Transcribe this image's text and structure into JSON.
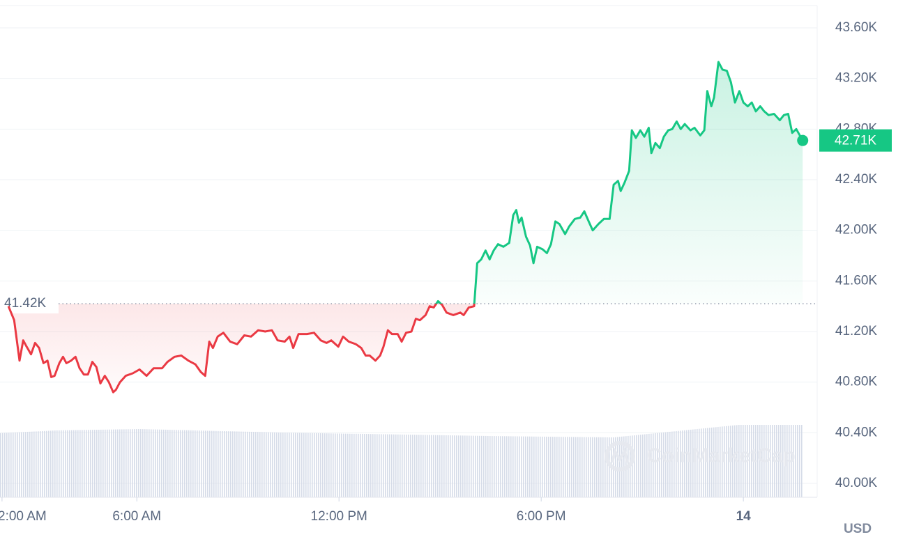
{
  "chart_data": {
    "type": "line",
    "currency": "USD",
    "watermark": "CoinMarketCap",
    "xlim": [
      1.94,
      26.19
    ],
    "xticks": [
      {
        "value": 2,
        "label": "2:00 AM"
      },
      {
        "value": 6,
        "label": "6:00 AM"
      },
      {
        "value": 12,
        "label": "12:00 PM"
      },
      {
        "value": 18,
        "label": "6:00 PM"
      },
      {
        "value": 24,
        "label": "14"
      }
    ],
    "ylim": [
      39890,
      43776
    ],
    "yticks": [
      {
        "value": 40000,
        "label": "40.00K"
      },
      {
        "value": 40400,
        "label": "40.40K"
      },
      {
        "value": 40800,
        "label": "40.80K"
      },
      {
        "value": 41200,
        "label": "41.20K"
      },
      {
        "value": 41600,
        "label": "41.60K"
      },
      {
        "value": 42000,
        "label": "42.00K"
      },
      {
        "value": 42400,
        "label": "42.40K"
      },
      {
        "value": 42800,
        "label": "42.80K"
      },
      {
        "value": 43200,
        "label": "43.20K"
      },
      {
        "value": 43600,
        "label": "43.60K"
      }
    ],
    "grid": true,
    "baseline": {
      "value": 41420,
      "label": "41.42K"
    },
    "price_label": {
      "value": 42710,
      "label": "42.71K"
    },
    "up_color": "#16c784",
    "down_color": "#ea3943",
    "x": [
      2.19,
      2.36,
      2.52,
      2.63,
      2.73,
      2.86,
      2.98,
      3.1,
      3.23,
      3.35,
      3.46,
      3.56,
      3.7,
      3.81,
      3.91,
      4.05,
      4.18,
      4.3,
      4.43,
      4.55,
      4.68,
      4.8,
      4.92,
      5.05,
      5.17,
      5.3,
      5.38,
      5.5,
      5.67,
      5.88,
      6.08,
      6.29,
      6.5,
      6.75,
      6.91,
      7.12,
      7.32,
      7.53,
      7.74,
      7.9,
      8.03,
      8.15,
      8.26,
      8.4,
      8.57,
      8.77,
      8.98,
      9.19,
      9.39,
      9.6,
      9.81,
      10.01,
      10.18,
      10.39,
      10.53,
      10.64,
      10.8,
      11.05,
      11.26,
      11.46,
      11.63,
      11.77,
      11.98,
      12.12,
      12.29,
      12.5,
      12.66,
      12.79,
      12.91,
      13.08,
      13.22,
      13.32,
      13.45,
      13.57,
      13.74,
      13.86,
      13.99,
      14.15,
      14.28,
      14.4,
      14.57,
      14.69,
      14.81,
      14.94,
      15.06,
      15.19,
      15.39,
      15.6,
      15.7,
      15.85,
      16.01,
      16.1,
      16.22,
      16.35,
      16.47,
      16.59,
      16.72,
      16.88,
      17.05,
      17.17,
      17.26,
      17.34,
      17.42,
      17.55,
      17.67,
      17.77,
      17.88,
      18.04,
      18.17,
      18.29,
      18.42,
      18.54,
      18.71,
      18.83,
      19.0,
      19.16,
      19.28,
      19.41,
      19.53,
      19.7,
      19.86,
      20.03,
      20.15,
      20.28,
      20.36,
      20.48,
      20.61,
      20.69,
      20.81,
      20.94,
      21.06,
      21.19,
      21.27,
      21.39,
      21.52,
      21.64,
      21.77,
      21.89,
      22.02,
      22.14,
      22.26,
      22.43,
      22.55,
      22.72,
      22.84,
      22.93,
      23.05,
      23.13,
      23.26,
      23.38,
      23.51,
      23.63,
      23.75,
      23.88,
      24.0,
      24.13,
      24.25,
      24.37,
      24.5,
      24.62,
      24.75,
      24.91,
      25.08,
      25.2,
      25.33,
      25.45,
      25.57,
      25.76
    ],
    "values": [
      41400,
      41290,
      40970,
      41130,
      41080,
      41020,
      41110,
      41070,
      40950,
      40970,
      40840,
      40850,
      40950,
      41000,
      40950,
      40970,
      41000,
      40910,
      40860,
      40860,
      40960,
      40920,
      40790,
      40850,
      40800,
      40720,
      40740,
      40800,
      40850,
      40870,
      40900,
      40850,
      40910,
      40910,
      40960,
      41000,
      41010,
      40970,
      40940,
      40880,
      40850,
      41120,
      41070,
      41160,
      41190,
      41120,
      41100,
      41170,
      41160,
      41210,
      41200,
      41210,
      41130,
      41120,
      41160,
      41070,
      41180,
      41180,
      41190,
      41130,
      41110,
      41130,
      41080,
      41160,
      41120,
      41100,
      41070,
      41010,
      41010,
      40970,
      41010,
      41080,
      41210,
      41180,
      41180,
      41120,
      41190,
      41200,
      41300,
      41290,
      41330,
      41400,
      41390,
      41440,
      41410,
      41350,
      41330,
      41350,
      41330,
      41390,
      41400,
      41740,
      41770,
      41840,
      41770,
      41840,
      41890,
      41870,
      41900,
      42120,
      42160,
      42060,
      42100,
      41950,
      41880,
      41740,
      41870,
      41850,
      41820,
      41890,
      42070,
      42050,
      41970,
      42030,
      42090,
      42100,
      42150,
      42070,
      42000,
      42050,
      42090,
      42090,
      42360,
      42390,
      42310,
      42380,
      42470,
      42790,
      42730,
      42790,
      42740,
      42810,
      42610,
      42690,
      42650,
      42740,
      42790,
      42800,
      42860,
      42800,
      42840,
      42790,
      42810,
      42750,
      42790,
      43100,
      42980,
      43050,
      43330,
      43270,
      43260,
      43170,
      43010,
      43100,
      43010,
      42980,
      43010,
      42940,
      42980,
      42940,
      42910,
      42920,
      42870,
      42910,
      42920,
      42770,
      42800,
      42710
    ]
  }
}
